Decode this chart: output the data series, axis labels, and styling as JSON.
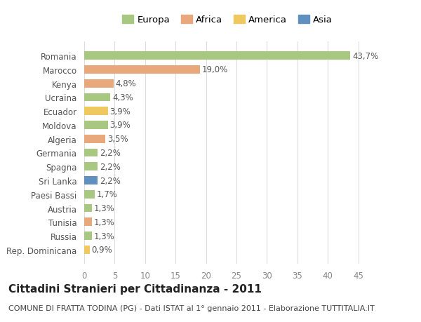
{
  "categories": [
    "Romania",
    "Marocco",
    "Kenya",
    "Ucraina",
    "Ecuador",
    "Moldova",
    "Algeria",
    "Germania",
    "Spagna",
    "Sri Lanka",
    "Paesi Bassi",
    "Austria",
    "Tunisia",
    "Russia",
    "Rep. Dominicana"
  ],
  "values": [
    43.7,
    19.0,
    4.8,
    4.3,
    3.9,
    3.9,
    3.5,
    2.2,
    2.2,
    2.2,
    1.7,
    1.3,
    1.3,
    1.3,
    0.9
  ],
  "labels": [
    "43,7%",
    "19,0%",
    "4,8%",
    "4,3%",
    "3,9%",
    "3,9%",
    "3,5%",
    "2,2%",
    "2,2%",
    "2,2%",
    "1,7%",
    "1,3%",
    "1,3%",
    "1,3%",
    "0,9%"
  ],
  "colors": [
    "#a8c882",
    "#e8a87c",
    "#e8a87c",
    "#a8c882",
    "#f0c860",
    "#a8c882",
    "#e8a87c",
    "#a8c882",
    "#a8c882",
    "#6090c0",
    "#a8c882",
    "#a8c882",
    "#e8a87c",
    "#a8c882",
    "#f0c860"
  ],
  "legend_labels": [
    "Europa",
    "Africa",
    "America",
    "Asia"
  ],
  "legend_colors": [
    "#a8c882",
    "#e8a87c",
    "#f0c860",
    "#6090c0"
  ],
  "title": "Cittadini Stranieri per Cittadinanza - 2011",
  "subtitle": "COMUNE DI FRATTA TODINA (PG) - Dati ISTAT al 1° gennaio 2011 - Elaborazione TUTTITALIA.IT",
  "xlim": [
    0,
    47
  ],
  "xticks": [
    0,
    5,
    10,
    15,
    20,
    25,
    30,
    35,
    40,
    45
  ],
  "background_color": "#ffffff",
  "grid_color": "#dddddd",
  "bar_height": 0.6,
  "label_fontsize": 8.5,
  "tick_fontsize": 8.5,
  "title_fontsize": 11,
  "subtitle_fontsize": 8.0
}
